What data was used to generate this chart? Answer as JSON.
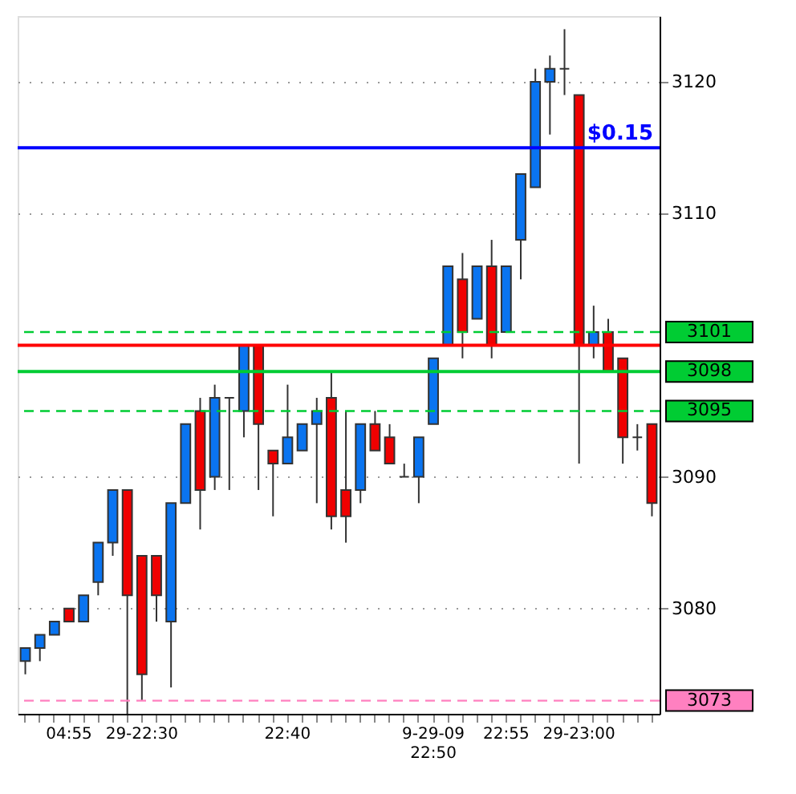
{
  "chart_data": {
    "type": "candlestick",
    "categories": [
      null,
      null,
      null,
      "04:55",
      null,
      null,
      null,
      null,
      "29-22:30",
      null,
      null,
      null,
      null,
      null,
      null,
      null,
      null,
      null,
      "22:40",
      null,
      null,
      null,
      null,
      null,
      null,
      null,
      null,
      null,
      "9-29-09 22:50",
      null,
      null,
      null,
      null,
      "22:55",
      null,
      null,
      null,
      null,
      "29-23:00",
      null,
      null,
      null,
      null,
      null
    ],
    "ohlc": [
      [
        3076,
        3077,
        3075,
        3077
      ],
      [
        3077,
        3078,
        3076,
        3078
      ],
      [
        3078,
        3079,
        3078,
        3079
      ],
      [
        3080,
        3080,
        3079,
        3079
      ],
      [
        3079,
        3081,
        3079,
        3081
      ],
      [
        3082,
        3085,
        3081,
        3085
      ],
      [
        3085,
        3089,
        3084,
        3089
      ],
      [
        3089,
        3089,
        3072,
        3081
      ],
      [
        3084,
        3084,
        3073,
        3075
      ],
      [
        3084,
        3084,
        3079,
        3081
      ],
      [
        3079,
        3088,
        3074,
        3088
      ],
      [
        3088,
        3094,
        3088,
        3094
      ],
      [
        3095,
        3096,
        3086,
        3089
      ],
      [
        3090,
        3097,
        3089,
        3096
      ],
      [
        3096,
        3096,
        3089,
        3096
      ],
      [
        3095,
        3100,
        3093,
        3100
      ],
      [
        3100,
        3100,
        3089,
        3094
      ],
      [
        3092,
        3092,
        3087,
        3091
      ],
      [
        3091,
        3097,
        3091,
        3093
      ],
      [
        3092,
        3094,
        3092,
        3094
      ],
      [
        3094,
        3096,
        3088,
        3095
      ],
      [
        3096,
        3098,
        3086,
        3087
      ],
      [
        3089,
        3095,
        3085,
        3087
      ],
      [
        3089,
        3094,
        3088,
        3094
      ],
      [
        3094,
        3095,
        3092,
        3092
      ],
      [
        3093,
        3094,
        3091,
        3091
      ],
      [
        3090,
        3091,
        3090,
        3090
      ],
      [
        3090,
        3093,
        3088,
        3093
      ],
      [
        3094,
        3099,
        3094,
        3099
      ],
      [
        3100,
        3106,
        3100,
        3106
      ],
      [
        3105,
        3107,
        3099,
        3101
      ],
      [
        3102,
        3106,
        3102,
        3106
      ],
      [
        3106,
        3108,
        3099,
        3100
      ],
      [
        3101,
        3106,
        3101,
        3106
      ],
      [
        3108,
        3113,
        3105,
        3113
      ],
      [
        3112,
        3121,
        3112,
        3120
      ],
      [
        3120,
        3122,
        3116,
        3121
      ],
      [
        3121,
        3124,
        3119,
        3121
      ],
      [
        3119,
        3119,
        3091,
        3100
      ],
      [
        3100,
        3103,
        3099,
        3101
      ],
      [
        3101,
        3102,
        3098,
        3098
      ],
      [
        3099,
        3099,
        3091,
        3093
      ],
      [
        3093,
        3094,
        3092,
        3093
      ],
      [
        3094,
        3094,
        3087,
        3088
      ]
    ],
    "colors": [
      "#0a74f0",
      "#0a74f0",
      "#0a74f0",
      "#f00000",
      "#0a74f0",
      "#0a74f0",
      "#0a74f0",
      "#f00000",
      "#f00000",
      "#f00000",
      "#0a74f0",
      "#0a74f0",
      "#f00000",
      "#0a74f0",
      "#333333",
      "#0a74f0",
      "#f00000",
      "#f00000",
      "#0a74f0",
      "#0a74f0",
      "#0a74f0",
      "#f00000",
      "#f00000",
      "#0a74f0",
      "#f00000",
      "#f00000",
      "#333333",
      "#0a74f0",
      "#0a74f0",
      "#0a74f0",
      "#f00000",
      "#0a74f0",
      "#f00000",
      "#0a74f0",
      "#0a74f0",
      "#0a74f0",
      "#0a74f0",
      "#333333",
      "#f00000",
      "#0a74f0",
      "#f00000",
      "#f00000",
      "#333333",
      "#f00000"
    ],
    "ylim": [
      3072,
      3125
    ],
    "yticks": [
      3080,
      3090,
      3110,
      3120
    ],
    "annotations": [
      {
        "text": "$0.15",
        "y": 3115
      }
    ],
    "grid": true,
    "ref_lines": [
      {
        "axis": "y",
        "value": 3101,
        "label": "3101",
        "color": "#00cc33",
        "line_style": "dashed"
      },
      {
        "axis": "y",
        "value": 3098,
        "label": "3098",
        "color": "#00cc33",
        "line_style": "solid"
      },
      {
        "axis": "y",
        "value": 3095,
        "label": "3095",
        "color": "#00cc33",
        "line_style": "dashed"
      },
      {
        "axis": "y",
        "value": 3073,
        "label": "3073",
        "color": "#ff80c0",
        "line_style": "dashed"
      },
      {
        "axis": "y",
        "value": 3100,
        "color": "#ff0000",
        "line_style": "solid"
      },
      {
        "axis": "y",
        "value": 3115,
        "color": "#0000ff",
        "line_style": "solid"
      }
    ]
  }
}
